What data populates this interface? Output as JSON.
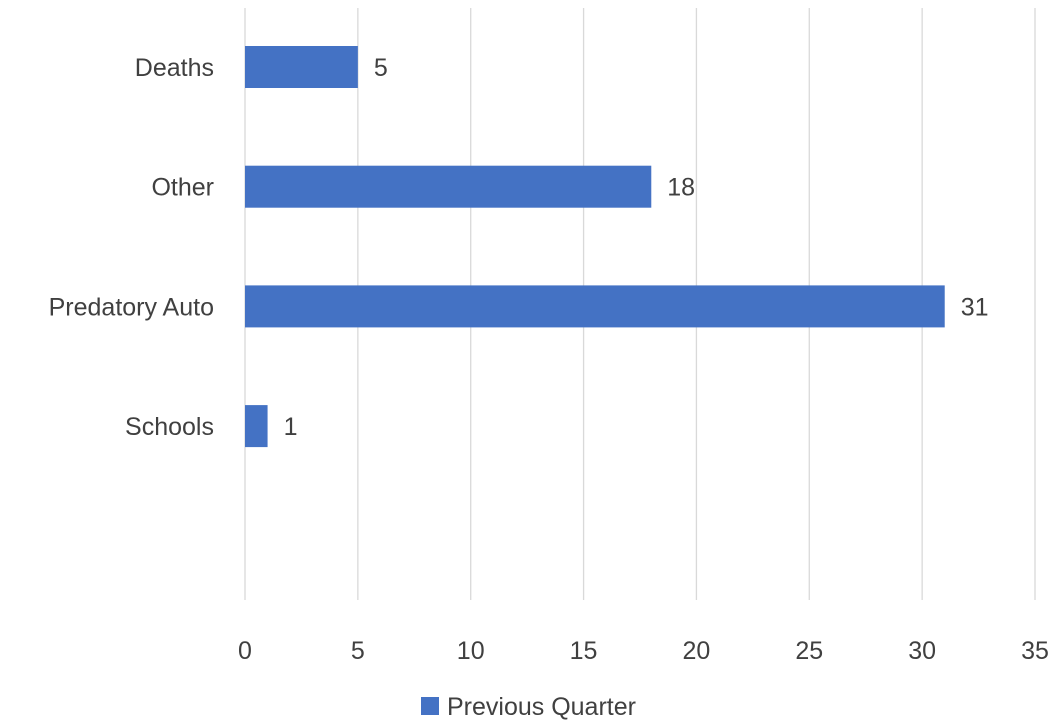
{
  "chart_data": {
    "type": "bar",
    "orientation": "horizontal",
    "categories": [
      "Deaths",
      "Other",
      "Predatory Auto",
      "Schools"
    ],
    "series": [
      {
        "name": "Previous Quarter",
        "values": [
          5,
          18,
          31,
          1
        ],
        "color": "#4472c4"
      }
    ],
    "data_labels": [
      "5",
      "18",
      "31",
      "1"
    ],
    "xlim": [
      0,
      35
    ],
    "x_ticks": [
      0,
      5,
      10,
      15,
      20,
      25,
      30,
      35
    ],
    "title": "",
    "xlabel": "",
    "ylabel": "",
    "grid": "vertical",
    "legend": "bottom"
  },
  "colors": {
    "bar": "#4472c4",
    "grid": "#d9d9d9",
    "text": "#404040"
  },
  "legend": {
    "label": "Previous Quarter"
  }
}
